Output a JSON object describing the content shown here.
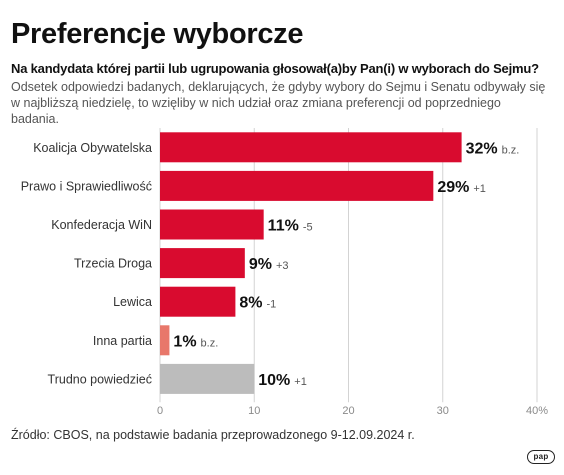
{
  "header": {
    "title": "Preferencje wyborcze",
    "question": "Na kandydata której partii lub ugrupowania głosował(a)by Pan(i) w wyborach do Sejmu?",
    "description_line1": "Odsetek odpowiedzi badanych, deklarujących, że gdyby wybory do Sejmu i Senatu odbywały się",
    "description_line2": "w najbliższą niedzielę, to wzięliby w nich udział oraz zmiana preferencji od poprzedniego badania."
  },
  "footer": {
    "source": "Źródło: CBOS, na podstawie badania przeprowadzonego 9-12.09.2024 r.",
    "logo_text": "pap"
  },
  "colors": {
    "accent": "#d90b2f",
    "other": "#e8776a",
    "undecided": "#bcbcbc",
    "grid": "#d3d3d3"
  },
  "chart_data": {
    "type": "bar",
    "orientation": "horizontal",
    "title": "Preferencje wyborcze",
    "categories": [
      "Koalicja Obywatelska",
      "Prawo i Sprawiedliwość",
      "Konfederacja WiN",
      "Trzecia Droga",
      "Lewica",
      "Inna partia",
      "Trudno powiedzieć"
    ],
    "values": [
      32,
      29,
      11,
      9,
      8,
      1,
      10
    ],
    "value_labels": [
      "32%",
      "29%",
      "11%",
      "9%",
      "8%",
      "1%",
      "10%"
    ],
    "change_labels": [
      "b.z.",
      "+1",
      "-5",
      "+3",
      "-1",
      "b.z.",
      "+1"
    ],
    "bar_colors": [
      "#d90b2f",
      "#d90b2f",
      "#d90b2f",
      "#d90b2f",
      "#d90b2f",
      "#e8776a",
      "#bcbcbc"
    ],
    "xlim": [
      0,
      40
    ],
    "xticks": [
      "0",
      "10",
      "20",
      "30",
      "40%"
    ],
    "grid": true
  }
}
